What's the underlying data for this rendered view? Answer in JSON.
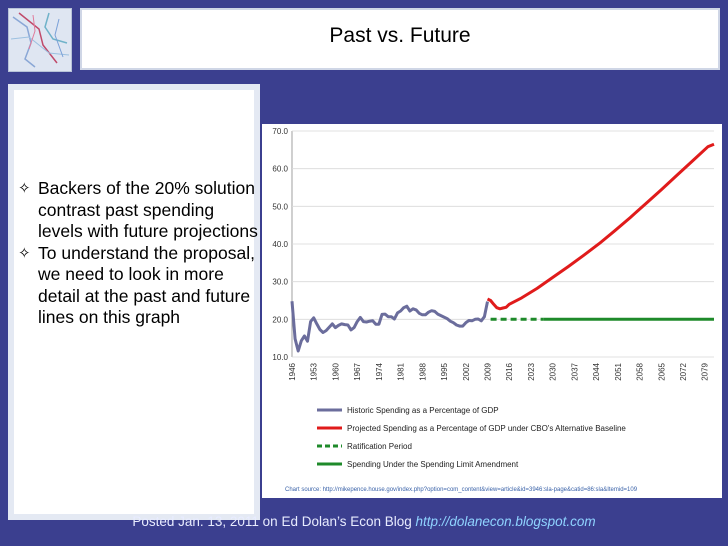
{
  "slide": {
    "title": "Past vs. Future"
  },
  "bullets": [
    {
      "text": "Backers of the 20% solution contrast past spending levels with future projections"
    },
    {
      "text": "To understand the proposal, we need to look in more detail at the past and future lines on this graph"
    }
  ],
  "chart_data": {
    "type": "line",
    "y_ticks": [
      "10.0",
      "20.0",
      "30.0",
      "40.0",
      "50.0",
      "60.0",
      "70.0"
    ],
    "ylim": [
      10,
      70
    ],
    "xlim": [
      1946,
      2082
    ],
    "x_ticks": [
      "1946",
      "1953",
      "1960",
      "1967",
      "1974",
      "1981",
      "1988",
      "1995",
      "2002",
      "2009",
      "2016",
      "2023",
      "2030",
      "2037",
      "2044",
      "2051",
      "2058",
      "2065",
      "2072",
      "2079"
    ],
    "series": [
      {
        "name": "Historic Spending as a Percentage of GDP",
        "color": "#6b6d9c",
        "style": "solid",
        "x": [
          1946,
          1947,
          1948,
          1949,
          1950,
          1951,
          1952,
          1953,
          1954,
          1955,
          1956,
          1957,
          1958,
          1959,
          1960,
          1961,
          1962,
          1963,
          1964,
          1965,
          1966,
          1967,
          1968,
          1969,
          1970,
          1971,
          1972,
          1973,
          1974,
          1975,
          1976,
          1977,
          1978,
          1979,
          1980,
          1981,
          1982,
          1983,
          1984,
          1985,
          1986,
          1987,
          1988,
          1989,
          1990,
          1991,
          1992,
          1993,
          1994,
          1995,
          1996,
          1997,
          1998,
          1999,
          2000,
          2001,
          2002,
          2003,
          2004,
          2005,
          2006,
          2007,
          2008,
          2009
        ],
        "y": [
          24.8,
          14.8,
          11.6,
          14.3,
          15.6,
          14.2,
          19.4,
          20.4,
          18.8,
          17.3,
          16.5,
          17.0,
          17.9,
          18.8,
          17.8,
          18.4,
          18.8,
          18.6,
          18.5,
          17.2,
          17.8,
          19.4,
          20.5,
          19.4,
          19.3,
          19.5,
          19.6,
          18.7,
          18.7,
          21.3,
          21.4,
          20.7,
          20.7,
          20.1,
          21.7,
          22.2,
          23.1,
          23.5,
          22.2,
          22.8,
          22.5,
          21.6,
          21.2,
          21.2,
          21.9,
          22.3,
          22.1,
          21.4,
          21.0,
          20.6,
          20.2,
          19.5,
          19.1,
          18.5,
          18.2,
          18.2,
          19.1,
          19.7,
          19.6,
          20.0,
          20.1,
          19.6,
          20.7,
          24.7
        ]
      },
      {
        "name": "Projected Spending as a Percentage of GDP under CBO's Alternative Baseline",
        "color": "#e01b1b",
        "style": "solid",
        "x": [
          2009,
          2010,
          2011,
          2012,
          2013,
          2014,
          2015,
          2016,
          2020,
          2025,
          2030,
          2035,
          2040,
          2045,
          2050,
          2055,
          2060,
          2065,
          2070,
          2075,
          2080,
          2082
        ],
        "y": [
          25.4,
          25.0,
          24.0,
          23.1,
          22.8,
          23.0,
          23.2,
          24.0,
          25.7,
          28.2,
          31.1,
          34.0,
          37.0,
          40.1,
          43.5,
          47.0,
          50.7,
          54.4,
          58.2,
          62.0,
          65.8,
          66.5
        ]
      },
      {
        "name": "Ratification Period",
        "color": "#1e8a2a",
        "style": "dashed",
        "x": [
          2010,
          2027
        ],
        "y": [
          20.0,
          20.0
        ]
      },
      {
        "name": "Spending Under the Spending Limit Amendment",
        "color": "#1e8a2a",
        "style": "solid",
        "x": [
          2027,
          2082
        ],
        "y": [
          20.0,
          20.0
        ]
      }
    ]
  },
  "chart_source": "Chart source: http://mikepence.house.gov/index.php?option=com_content&view=article&id=3946:sla-page&catid=86:sla&Itemid=109",
  "footer": {
    "text": "Posted Jan. 13, 2011 on Ed Dolan’s Econ Blog",
    "link": "http://dolanecon.blogspot.com"
  }
}
